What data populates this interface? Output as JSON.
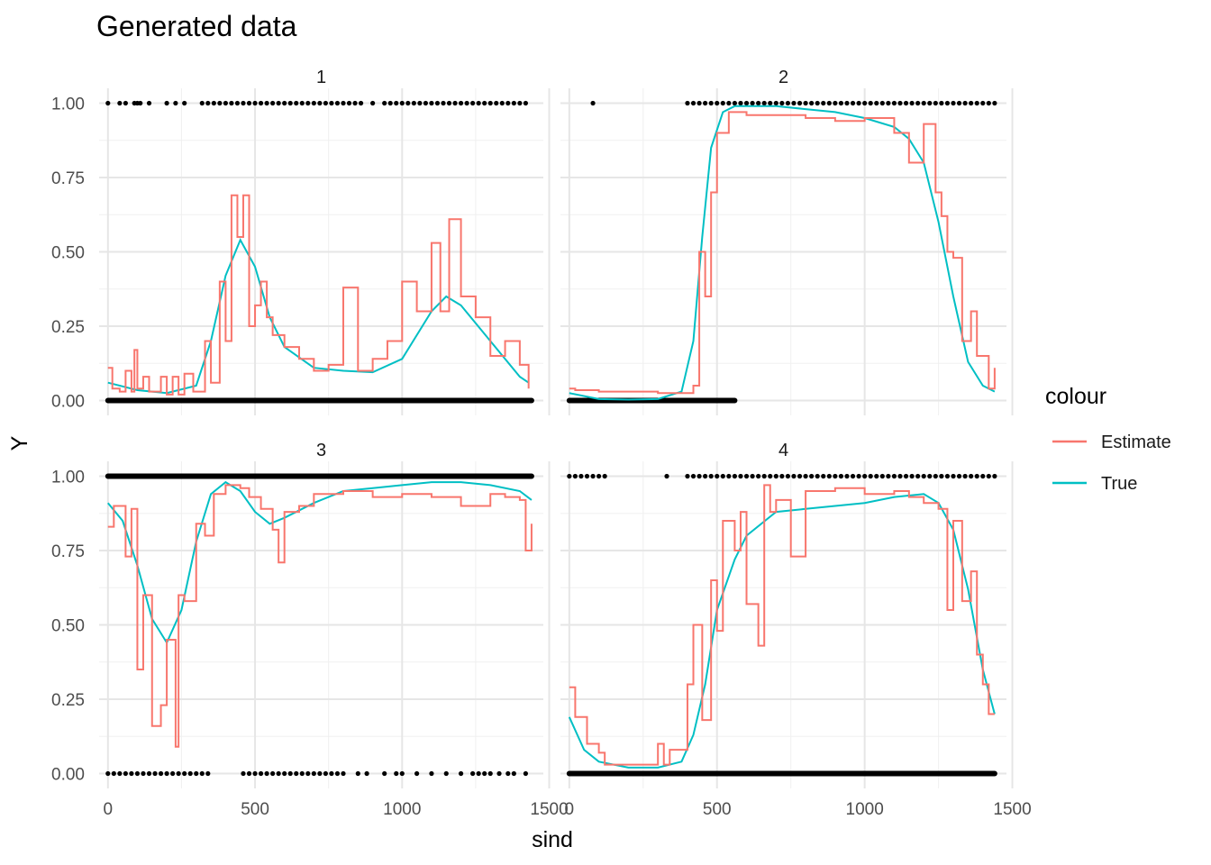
{
  "chart_data": {
    "type": "line",
    "title": "Generated data",
    "xlabel": "sind",
    "ylabel": "Y",
    "xlim": [
      -30,
      1480
    ],
    "ylim": [
      -0.05,
      1.05
    ],
    "x_ticks": [
      0,
      500,
      1000,
      1500
    ],
    "y_ticks": [
      0,
      0.25,
      0.5,
      0.75,
      1
    ],
    "x_tick_labels": [
      "0",
      "500",
      "1000",
      "1500"
    ],
    "y_tick_labels": [
      "0.00",
      "0.25",
      "0.50",
      "0.75",
      "1.00"
    ],
    "grid": true,
    "legend": {
      "title": "colour",
      "placement": "right",
      "entries": [
        {
          "name": "Estimate",
          "color": "#F8766D"
        },
        {
          "name": "True",
          "color": "#00BFC4"
        }
      ]
    },
    "points_color": "#000000",
    "panels": [
      {
        "label": "1",
        "true_curve": {
          "x": [
            0,
            100,
            200,
            300,
            350,
            400,
            450,
            500,
            550,
            600,
            700,
            800,
            900,
            1000,
            1100,
            1150,
            1200,
            1300,
            1400,
            1430
          ],
          "y": [
            0.06,
            0.035,
            0.025,
            0.05,
            0.2,
            0.42,
            0.54,
            0.45,
            0.28,
            0.18,
            0.11,
            0.1,
            0.095,
            0.14,
            0.3,
            0.35,
            0.32,
            0.2,
            0.08,
            0.06
          ]
        },
        "estimate": {
          "x": [
            0,
            15,
            40,
            60,
            80,
            90,
            100,
            120,
            140,
            160,
            180,
            200,
            220,
            240,
            260,
            290,
            330,
            350,
            380,
            400,
            420,
            440,
            460,
            480,
            500,
            520,
            540,
            560,
            600,
            650,
            700,
            750,
            800,
            850,
            900,
            950,
            1000,
            1050,
            1100,
            1130,
            1160,
            1200,
            1250,
            1300,
            1350,
            1400,
            1430
          ],
          "y": [
            0.11,
            0.04,
            0.03,
            0.1,
            0.03,
            0.17,
            0.04,
            0.08,
            0.03,
            0.03,
            0.08,
            0.02,
            0.08,
            0.02,
            0.09,
            0.03,
            0.2,
            0.06,
            0.4,
            0.2,
            0.69,
            0.55,
            0.69,
            0.25,
            0.32,
            0.4,
            0.28,
            0.22,
            0.18,
            0.14,
            0.1,
            0.12,
            0.38,
            0.1,
            0.14,
            0.2,
            0.4,
            0.3,
            0.53,
            0.3,
            0.61,
            0.35,
            0.28,
            0.15,
            0.2,
            0.12,
            0.04
          ]
        },
        "points_y1": [
          0,
          40,
          60,
          90,
          100,
          110,
          140,
          200,
          230,
          260,
          320,
          340,
          360,
          380,
          400,
          420,
          440,
          460,
          480,
          500,
          520,
          540,
          560,
          580,
          600,
          620,
          640,
          660,
          680,
          700,
          720,
          740,
          760,
          780,
          800,
          820,
          840,
          860,
          900,
          940,
          960,
          980,
          1000,
          1020,
          1040,
          1060,
          1080,
          1100,
          1120,
          1140,
          1160,
          1180,
          1200,
          1220,
          1240,
          1260,
          1280,
          1300,
          1320,
          1340,
          1360,
          1380,
          1400,
          1420
        ],
        "points_y0_range": [
          0,
          1440
        ]
      },
      {
        "label": "2",
        "true_curve": {
          "x": [
            0,
            100,
            200,
            300,
            380,
            420,
            450,
            480,
            520,
            560,
            600,
            700,
            800,
            900,
            1000,
            1100,
            1150,
            1200,
            1250,
            1300,
            1350,
            1400,
            1440
          ],
          "y": [
            0.025,
            0.005,
            0.003,
            0.005,
            0.03,
            0.2,
            0.55,
            0.85,
            0.97,
            0.99,
            0.99,
            0.99,
            0.98,
            0.97,
            0.95,
            0.92,
            0.88,
            0.8,
            0.6,
            0.35,
            0.13,
            0.05,
            0.03
          ]
        },
        "estimate": {
          "x": [
            0,
            20,
            100,
            200,
            300,
            380,
            420,
            440,
            460,
            480,
            500,
            540,
            600,
            700,
            800,
            900,
            1000,
            1100,
            1150,
            1200,
            1240,
            1260,
            1280,
            1300,
            1330,
            1360,
            1380,
            1420,
            1440
          ],
          "y": [
            0.04,
            0.035,
            0.03,
            0.03,
            0.025,
            0.025,
            0.05,
            0.5,
            0.35,
            0.7,
            0.9,
            0.97,
            0.96,
            0.96,
            0.95,
            0.94,
            0.95,
            0.9,
            0.8,
            0.93,
            0.7,
            0.62,
            0.5,
            0.48,
            0.2,
            0.3,
            0.15,
            0.04,
            0.11
          ]
        },
        "points_y1": [
          80,
          400,
          420,
          440,
          460,
          480,
          500,
          520,
          540,
          560,
          580,
          600,
          620,
          640,
          660,
          680,
          700,
          720,
          740,
          760,
          780,
          800,
          820,
          840,
          860,
          880,
          900,
          920,
          940,
          960,
          980,
          1000,
          1020,
          1040,
          1060,
          1080,
          1100,
          1120,
          1140,
          1160,
          1180,
          1200,
          1220,
          1240,
          1260,
          1280,
          1300,
          1320,
          1340,
          1360,
          1380,
          1400,
          1420,
          1440
        ],
        "points_y0_range": [
          0,
          560
        ]
      },
      {
        "label": "3",
        "true_curve": {
          "x": [
            0,
            50,
            100,
            150,
            200,
            250,
            300,
            350,
            400,
            450,
            500,
            550,
            600,
            700,
            800,
            900,
            1000,
            1100,
            1200,
            1300,
            1400,
            1440
          ],
          "y": [
            0.91,
            0.85,
            0.7,
            0.52,
            0.44,
            0.55,
            0.78,
            0.94,
            0.98,
            0.95,
            0.88,
            0.84,
            0.86,
            0.91,
            0.95,
            0.96,
            0.97,
            0.98,
            0.98,
            0.97,
            0.95,
            0.92
          ]
        },
        "estimate": {
          "x": [
            0,
            20,
            60,
            80,
            100,
            120,
            150,
            180,
            200,
            230,
            240,
            260,
            300,
            330,
            360,
            400,
            450,
            480,
            520,
            560,
            580,
            600,
            650,
            700,
            800,
            900,
            1000,
            1100,
            1200,
            1300,
            1350,
            1400,
            1420,
            1440
          ],
          "y": [
            0.83,
            0.9,
            0.73,
            0.89,
            0.35,
            0.6,
            0.16,
            0.23,
            0.45,
            0.09,
            0.6,
            0.58,
            0.84,
            0.8,
            0.94,
            0.97,
            0.96,
            0.93,
            0.89,
            0.82,
            0.71,
            0.88,
            0.9,
            0.94,
            0.95,
            0.93,
            0.94,
            0.93,
            0.9,
            0.94,
            0.93,
            0.92,
            0.75,
            0.84
          ]
        },
        "points_y1_range": [
          0,
          1440
        ],
        "points_y0": [
          0,
          20,
          40,
          60,
          80,
          100,
          120,
          140,
          160,
          180,
          200,
          220,
          240,
          260,
          280,
          300,
          320,
          340,
          460,
          480,
          500,
          520,
          540,
          560,
          580,
          600,
          620,
          640,
          660,
          680,
          700,
          720,
          740,
          760,
          780,
          800,
          850,
          880,
          940,
          980,
          1000,
          1050,
          1100,
          1150,
          1200,
          1240,
          1260,
          1280,
          1300,
          1330,
          1360,
          1380,
          1420
        ]
      },
      {
        "label": "4",
        "true_curve": {
          "x": [
            0,
            50,
            100,
            200,
            300,
            380,
            420,
            460,
            500,
            560,
            600,
            700,
            800,
            900,
            1000,
            1100,
            1200,
            1250,
            1300,
            1350,
            1400,
            1440
          ],
          "y": [
            0.19,
            0.08,
            0.04,
            0.02,
            0.02,
            0.04,
            0.13,
            0.3,
            0.55,
            0.72,
            0.8,
            0.88,
            0.89,
            0.9,
            0.91,
            0.93,
            0.94,
            0.91,
            0.82,
            0.62,
            0.35,
            0.2
          ]
        },
        "estimate": {
          "x": [
            0,
            20,
            60,
            100,
            120,
            150,
            200,
            250,
            300,
            320,
            340,
            400,
            420,
            450,
            480,
            500,
            520,
            560,
            580,
            600,
            640,
            660,
            680,
            700,
            750,
            800,
            900,
            1000,
            1100,
            1150,
            1200,
            1250,
            1280,
            1300,
            1330,
            1360,
            1380,
            1400,
            1420,
            1440
          ],
          "y": [
            0.29,
            0.19,
            0.1,
            0.07,
            0.03,
            0.03,
            0.03,
            0.03,
            0.1,
            0.03,
            0.08,
            0.3,
            0.5,
            0.18,
            0.65,
            0.48,
            0.85,
            0.75,
            0.88,
            0.57,
            0.43,
            0.97,
            0.88,
            0.92,
            0.73,
            0.95,
            0.96,
            0.94,
            0.95,
            0.93,
            0.91,
            0.89,
            0.55,
            0.85,
            0.58,
            0.68,
            0.4,
            0.3,
            0.2,
            0.2
          ]
        },
        "points_y1": [
          0,
          20,
          40,
          60,
          80,
          100,
          120,
          330,
          400,
          420,
          440,
          460,
          480,
          500,
          520,
          540,
          560,
          580,
          600,
          620,
          640,
          660,
          680,
          700,
          720,
          740,
          760,
          780,
          800,
          820,
          840,
          860,
          880,
          900,
          920,
          940,
          960,
          980,
          1000,
          1020,
          1040,
          1060,
          1080,
          1100,
          1120,
          1140,
          1160,
          1180,
          1200,
          1220,
          1240,
          1260,
          1280,
          1300,
          1320,
          1340,
          1360,
          1380,
          1400,
          1420,
          1440
        ],
        "points_y0_range": [
          0,
          1440
        ]
      }
    ]
  }
}
